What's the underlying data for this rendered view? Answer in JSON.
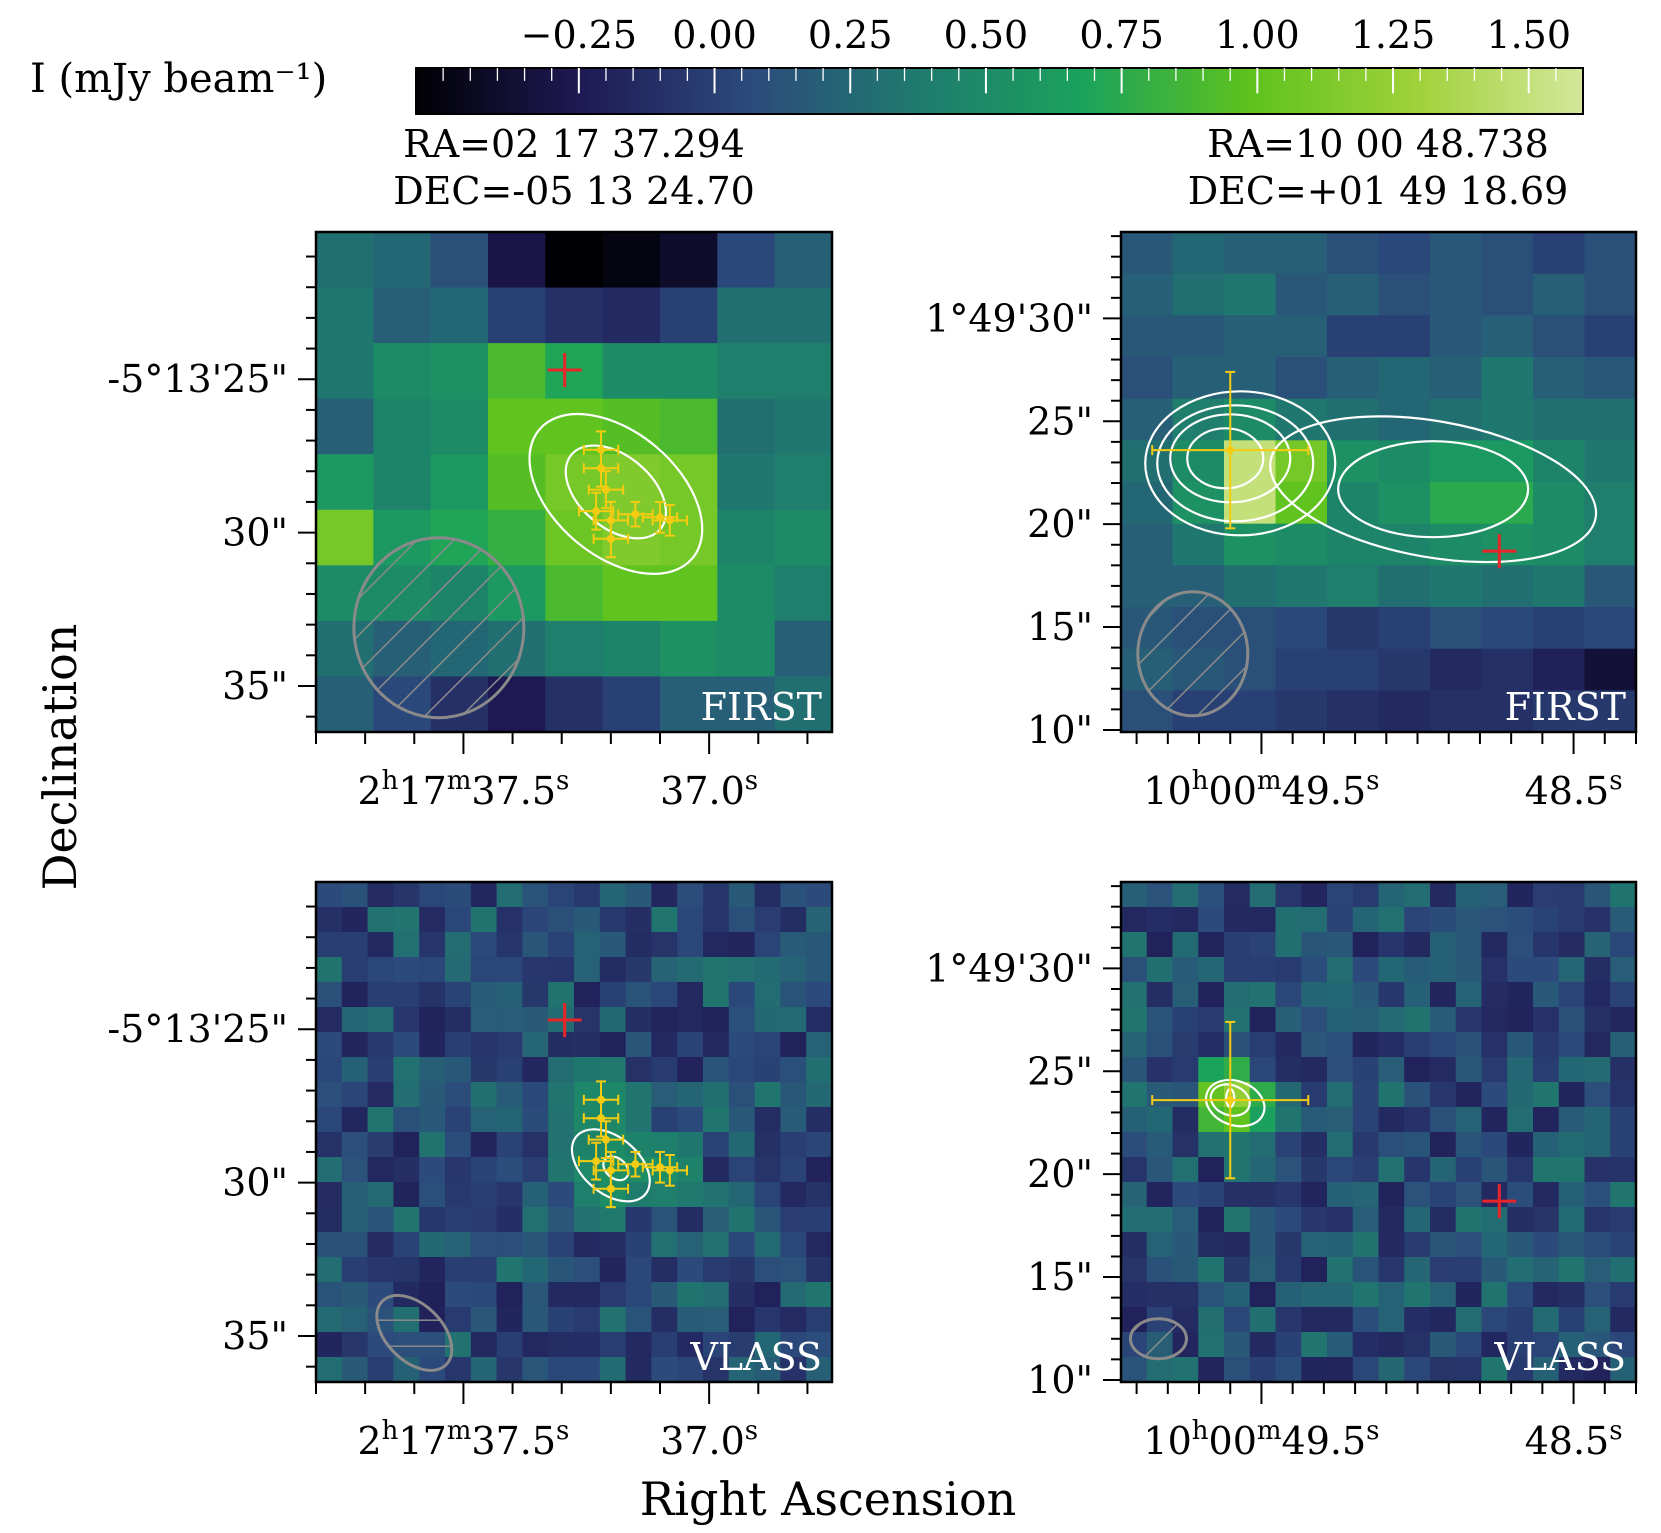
{
  "colorbar": {
    "label": "I (mJy beam⁻¹)",
    "ticks": [
      "−0.25",
      "0.00",
      "0.25",
      "0.50",
      "0.75",
      "1.00",
      "1.25",
      "1.50"
    ],
    "tick_values": [
      -0.25,
      0.0,
      0.25,
      0.5,
      0.75,
      1.0,
      1.25,
      1.5
    ],
    "range": [
      -0.55,
      1.6
    ],
    "colormap": [
      "#000004",
      "#1f1a55",
      "#2c4a7c",
      "#1f7a6e",
      "#1ba25c",
      "#5ec21e",
      "#9fd13a",
      "#d4e79a"
    ]
  },
  "columns": [
    {
      "ra": "RA=02 17 37.294",
      "dec": "DEC=-05 13 24.70"
    },
    {
      "ra": "RA=10 00 48.738",
      "dec": "DEC=+01 49 18.69"
    }
  ],
  "axes": {
    "xlabel": "Right Ascension",
    "ylabel": "Declination"
  },
  "chart_data": [
    {
      "type": "heatmap",
      "panel": "top-left",
      "survey_label": "FIRST",
      "xlim_sec": [
        37.8,
        36.75
      ],
      "ylim_arcsec": [
        36.5,
        20.2
      ],
      "x_tick_labels": [
        "2h17m37.5s",
        "37.0s"
      ],
      "x_tick_values": [
        37.5,
        37.0
      ],
      "y_tick_labels": [
        "-5°13'25\"",
        "30\"",
        "35\""
      ],
      "y_tick_values": [
        25,
        30,
        35
      ],
      "red_cross": {
        "ra_sec": 37.294,
        "dec_arcsec": 24.7
      },
      "yellow_points": [
        {
          "ra_sec": 37.22,
          "dec_arcsec": 27.3,
          "ra_err": 0.035,
          "dec_err": 0.6
        },
        {
          "ra_sec": 37.22,
          "dec_arcsec": 27.9,
          "ra_err": 0.035,
          "dec_err": 0.6
        },
        {
          "ra_sec": 37.21,
          "dec_arcsec": 28.6,
          "ra_err": 0.035,
          "dec_err": 0.6
        },
        {
          "ra_sec": 37.23,
          "dec_arcsec": 29.3,
          "ra_err": 0.035,
          "dec_err": 0.6
        },
        {
          "ra_sec": 37.2,
          "dec_arcsec": 29.6,
          "ra_err": 0.035,
          "dec_err": 0.6
        },
        {
          "ra_sec": 37.2,
          "dec_arcsec": 30.2,
          "ra_err": 0.035,
          "dec_err": 0.6
        },
        {
          "ra_sec": 37.15,
          "dec_arcsec": 29.4,
          "ra_err": 0.035,
          "dec_err": 0.4
        },
        {
          "ra_sec": 37.1,
          "dec_arcsec": 29.5,
          "ra_err": 0.035,
          "dec_err": 0.5
        },
        {
          "ra_sec": 37.08,
          "dec_arcsec": 29.6,
          "ra_err": 0.035,
          "dec_err": 0.5
        }
      ],
      "beam": {
        "ra_sec": 37.55,
        "dec_arcsec": 33.1,
        "size": "large"
      },
      "grid_data": [
        [
          0.3,
          0.25,
          0.1,
          -0.3,
          -0.55,
          -0.5,
          -0.4,
          0.05,
          0.2
        ],
        [
          0.35,
          0.2,
          0.25,
          0.0,
          -0.1,
          -0.15,
          0.0,
          0.3,
          0.3
        ],
        [
          0.35,
          0.5,
          0.55,
          0.9,
          0.7,
          0.5,
          0.5,
          0.4,
          0.4
        ],
        [
          0.2,
          0.45,
          0.5,
          1.0,
          1.0,
          0.95,
          0.9,
          0.3,
          0.35
        ],
        [
          0.6,
          0.45,
          0.6,
          0.95,
          1.1,
          1.15,
          1.1,
          0.35,
          0.4
        ],
        [
          1.1,
          0.6,
          0.7,
          0.8,
          1.05,
          1.15,
          1.1,
          0.45,
          0.5
        ],
        [
          0.5,
          0.5,
          0.45,
          0.6,
          0.9,
          1.0,
          1.0,
          0.5,
          0.4
        ],
        [
          0.3,
          0.2,
          0.25,
          0.3,
          0.4,
          0.45,
          0.55,
          0.5,
          0.2
        ],
        [
          0.2,
          0.05,
          -0.1,
          -0.25,
          -0.1,
          0.0,
          0.2,
          0.2,
          0.3
        ]
      ]
    },
    {
      "type": "heatmap",
      "panel": "top-right",
      "survey_label": "FIRST",
      "xlim_sec": [
        49.95,
        48.3
      ],
      "ylim_arcsec": [
        9.9,
        34.2
      ],
      "x_tick_labels": [
        "10h00m49.5s",
        "48.5s"
      ],
      "x_tick_values": [
        49.5,
        48.5
      ],
      "y_tick_labels": [
        "1°49'30\"",
        "25\"",
        "20\"",
        "15\"",
        "10\""
      ],
      "y_tick_values": [
        30,
        25,
        20,
        15,
        10
      ],
      "red_cross": {
        "ra_sec": 48.738,
        "dec_arcsec": 18.69
      },
      "yellow_points": [
        {
          "ra_sec": 49.6,
          "dec_arcsec": 23.6,
          "ra_err": 0.25,
          "dec_err": 3.8
        }
      ],
      "beam": {
        "ra_sec": 49.72,
        "dec_arcsec": 13.7,
        "size": "medium"
      },
      "grid_data": [
        [
          0.15,
          0.25,
          0.2,
          0.2,
          0.1,
          0.05,
          0.15,
          0.1,
          0.0,
          0.1
        ],
        [
          0.2,
          0.3,
          0.35,
          0.15,
          0.2,
          0.1,
          0.15,
          0.1,
          0.2,
          0.1
        ],
        [
          0.15,
          0.15,
          0.2,
          0.2,
          0.0,
          0.0,
          0.15,
          0.2,
          0.1,
          0.0
        ],
        [
          0.1,
          0.2,
          0.2,
          0.1,
          0.2,
          0.25,
          0.2,
          0.35,
          0.2,
          0.15
        ],
        [
          0.2,
          0.4,
          0.5,
          0.35,
          0.3,
          0.25,
          0.3,
          0.35,
          0.3,
          0.3
        ],
        [
          0.3,
          0.5,
          1.5,
          1.1,
          0.55,
          0.5,
          0.6,
          0.6,
          0.45,
          0.35
        ],
        [
          0.25,
          0.55,
          1.5,
          1.0,
          0.45,
          0.55,
          0.75,
          0.75,
          0.5,
          0.4
        ],
        [
          0.2,
          0.35,
          0.55,
          0.5,
          0.45,
          0.45,
          0.5,
          0.55,
          0.5,
          0.4
        ],
        [
          0.2,
          0.2,
          0.3,
          0.35,
          0.4,
          0.3,
          0.35,
          0.3,
          0.35,
          0.15
        ],
        [
          0.15,
          0.1,
          0.1,
          0.05,
          -0.05,
          0.0,
          0.1,
          0.05,
          0.0,
          0.05
        ],
        [
          0.2,
          0.15,
          0.1,
          0.0,
          0.0,
          -0.05,
          -0.15,
          -0.1,
          -0.2,
          -0.35
        ],
        [
          0.1,
          0.0,
          0.0,
          -0.05,
          -0.1,
          -0.15,
          -0.1,
          -0.1,
          -0.05,
          -0.05
        ]
      ]
    },
    {
      "type": "heatmap",
      "panel": "bottom-left",
      "survey_label": "VLASS",
      "xlim_sec": [
        37.8,
        36.75
      ],
      "ylim_arcsec": [
        36.5,
        20.2
      ],
      "x_tick_labels": [
        "2h17m37.5s",
        "37.0s"
      ],
      "x_tick_values": [
        37.5,
        37.0
      ],
      "y_tick_labels": [
        "-5°13'25\"",
        "30\"",
        "35\""
      ],
      "y_tick_values": [
        25,
        30,
        35
      ],
      "red_cross": {
        "ra_sec": 37.294,
        "dec_arcsec": 24.7
      },
      "yellow_points": [
        {
          "ra_sec": 37.22,
          "dec_arcsec": 27.3,
          "ra_err": 0.035,
          "dec_err": 0.6
        },
        {
          "ra_sec": 37.22,
          "dec_arcsec": 27.9,
          "ra_err": 0.035,
          "dec_err": 0.6
        },
        {
          "ra_sec": 37.21,
          "dec_arcsec": 28.6,
          "ra_err": 0.035,
          "dec_err": 0.6
        },
        {
          "ra_sec": 37.23,
          "dec_arcsec": 29.3,
          "ra_err": 0.035,
          "dec_err": 0.6
        },
        {
          "ra_sec": 37.2,
          "dec_arcsec": 29.6,
          "ra_err": 0.035,
          "dec_err": 0.6
        },
        {
          "ra_sec": 37.2,
          "dec_arcsec": 30.2,
          "ra_err": 0.035,
          "dec_err": 0.6
        },
        {
          "ra_sec": 37.15,
          "dec_arcsec": 29.4,
          "ra_err": 0.035,
          "dec_err": 0.4
        },
        {
          "ra_sec": 37.1,
          "dec_arcsec": 29.5,
          "ra_err": 0.035,
          "dec_err": 0.5
        },
        {
          "ra_sec": 37.08,
          "dec_arcsec": 29.6,
          "ra_err": 0.035,
          "dec_err": 0.5
        }
      ],
      "beam": {
        "ra_sec": 37.6,
        "dec_arcsec": 34.9,
        "size": "small"
      },
      "grid_seed": 7
    },
    {
      "type": "heatmap",
      "panel": "bottom-right",
      "survey_label": "VLASS",
      "xlim_sec": [
        49.95,
        48.3
      ],
      "ylim_arcsec": [
        9.9,
        34.2
      ],
      "x_tick_labels": [
        "10h00m49.5s",
        "48.5s"
      ],
      "x_tick_values": [
        49.5,
        48.5
      ],
      "y_tick_labels": [
        "1°49'30\"",
        "25\"",
        "20\"",
        "15\"",
        "10\""
      ],
      "y_tick_values": [
        30,
        25,
        20,
        15,
        10
      ],
      "red_cross": {
        "ra_sec": 48.738,
        "dec_arcsec": 18.69
      },
      "yellow_points": [
        {
          "ra_sec": 49.6,
          "dec_arcsec": 23.6,
          "ra_err": 0.25,
          "dec_err": 3.8
        }
      ],
      "beam": {
        "ra_sec": 49.83,
        "dec_arcsec": 12.0,
        "size": "tiny"
      },
      "grid_seed": 13
    }
  ]
}
